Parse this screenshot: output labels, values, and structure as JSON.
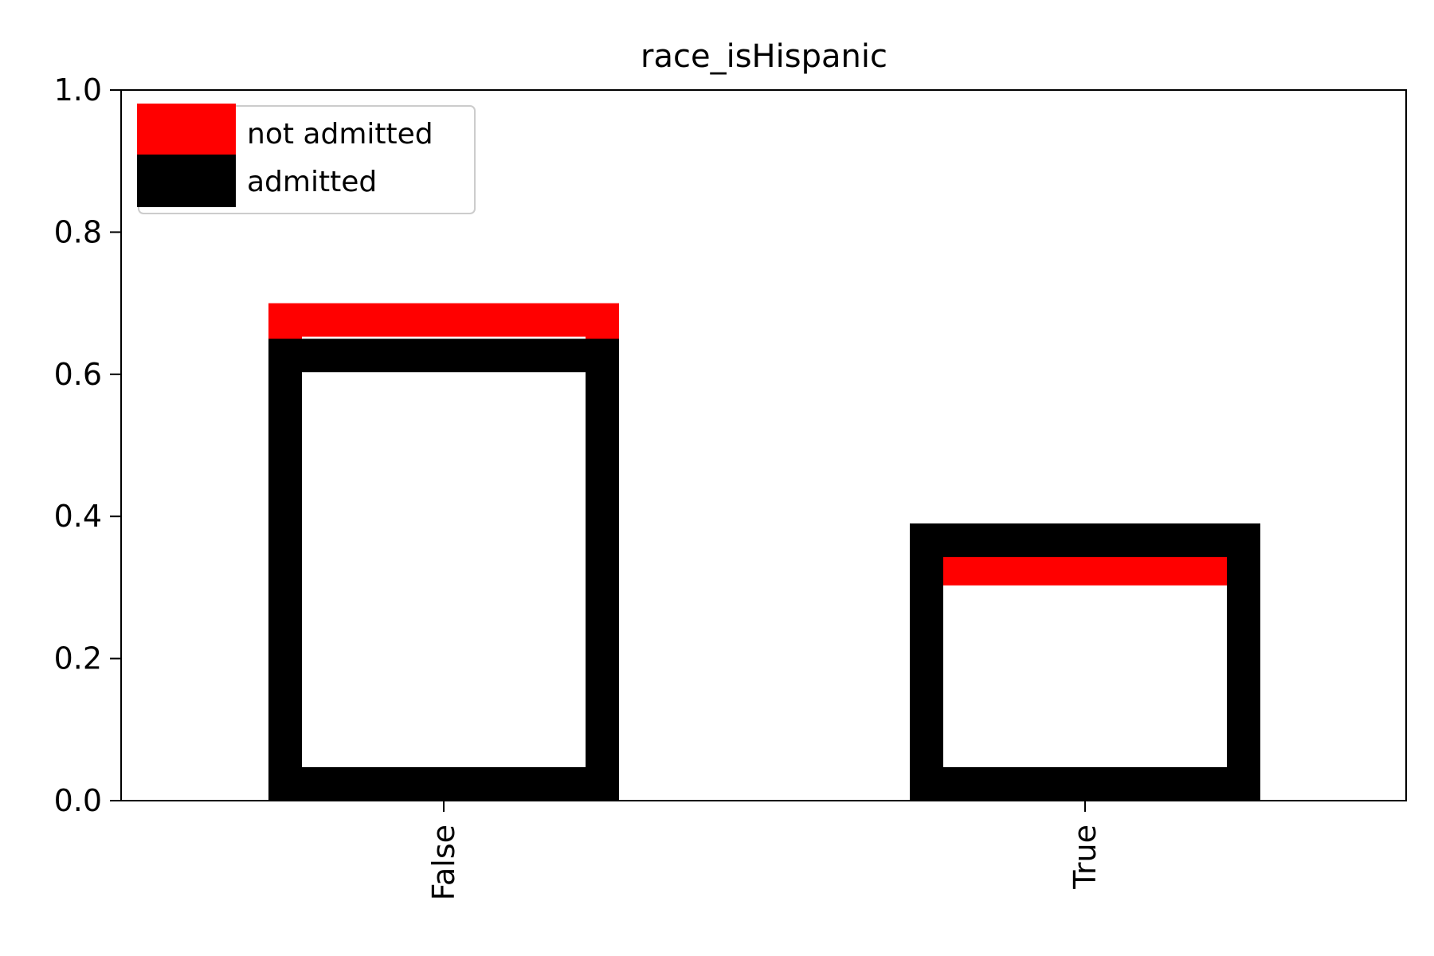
{
  "chart_data": {
    "type": "bar",
    "title": "race_isHispanic",
    "xlabel": "",
    "ylabel": "",
    "categories": [
      "False",
      "True"
    ],
    "series": [
      {
        "name": "not admitted",
        "values": [
          0.7,
          0.35
        ],
        "color": "#ff0000"
      },
      {
        "name": "admitted",
        "values": [
          0.65,
          0.39
        ],
        "color": "#000000"
      }
    ],
    "ylim": [
      0,
      1.0
    ],
    "yticks": [
      0.0,
      0.2,
      0.4,
      0.6,
      0.8,
      1.0
    ],
    "ytick_labels": [
      "0.0",
      "0.2",
      "0.4",
      "0.6",
      "0.8",
      "1.0"
    ],
    "grid": false,
    "legend_position": "top-left",
    "bar_style": "outline"
  }
}
